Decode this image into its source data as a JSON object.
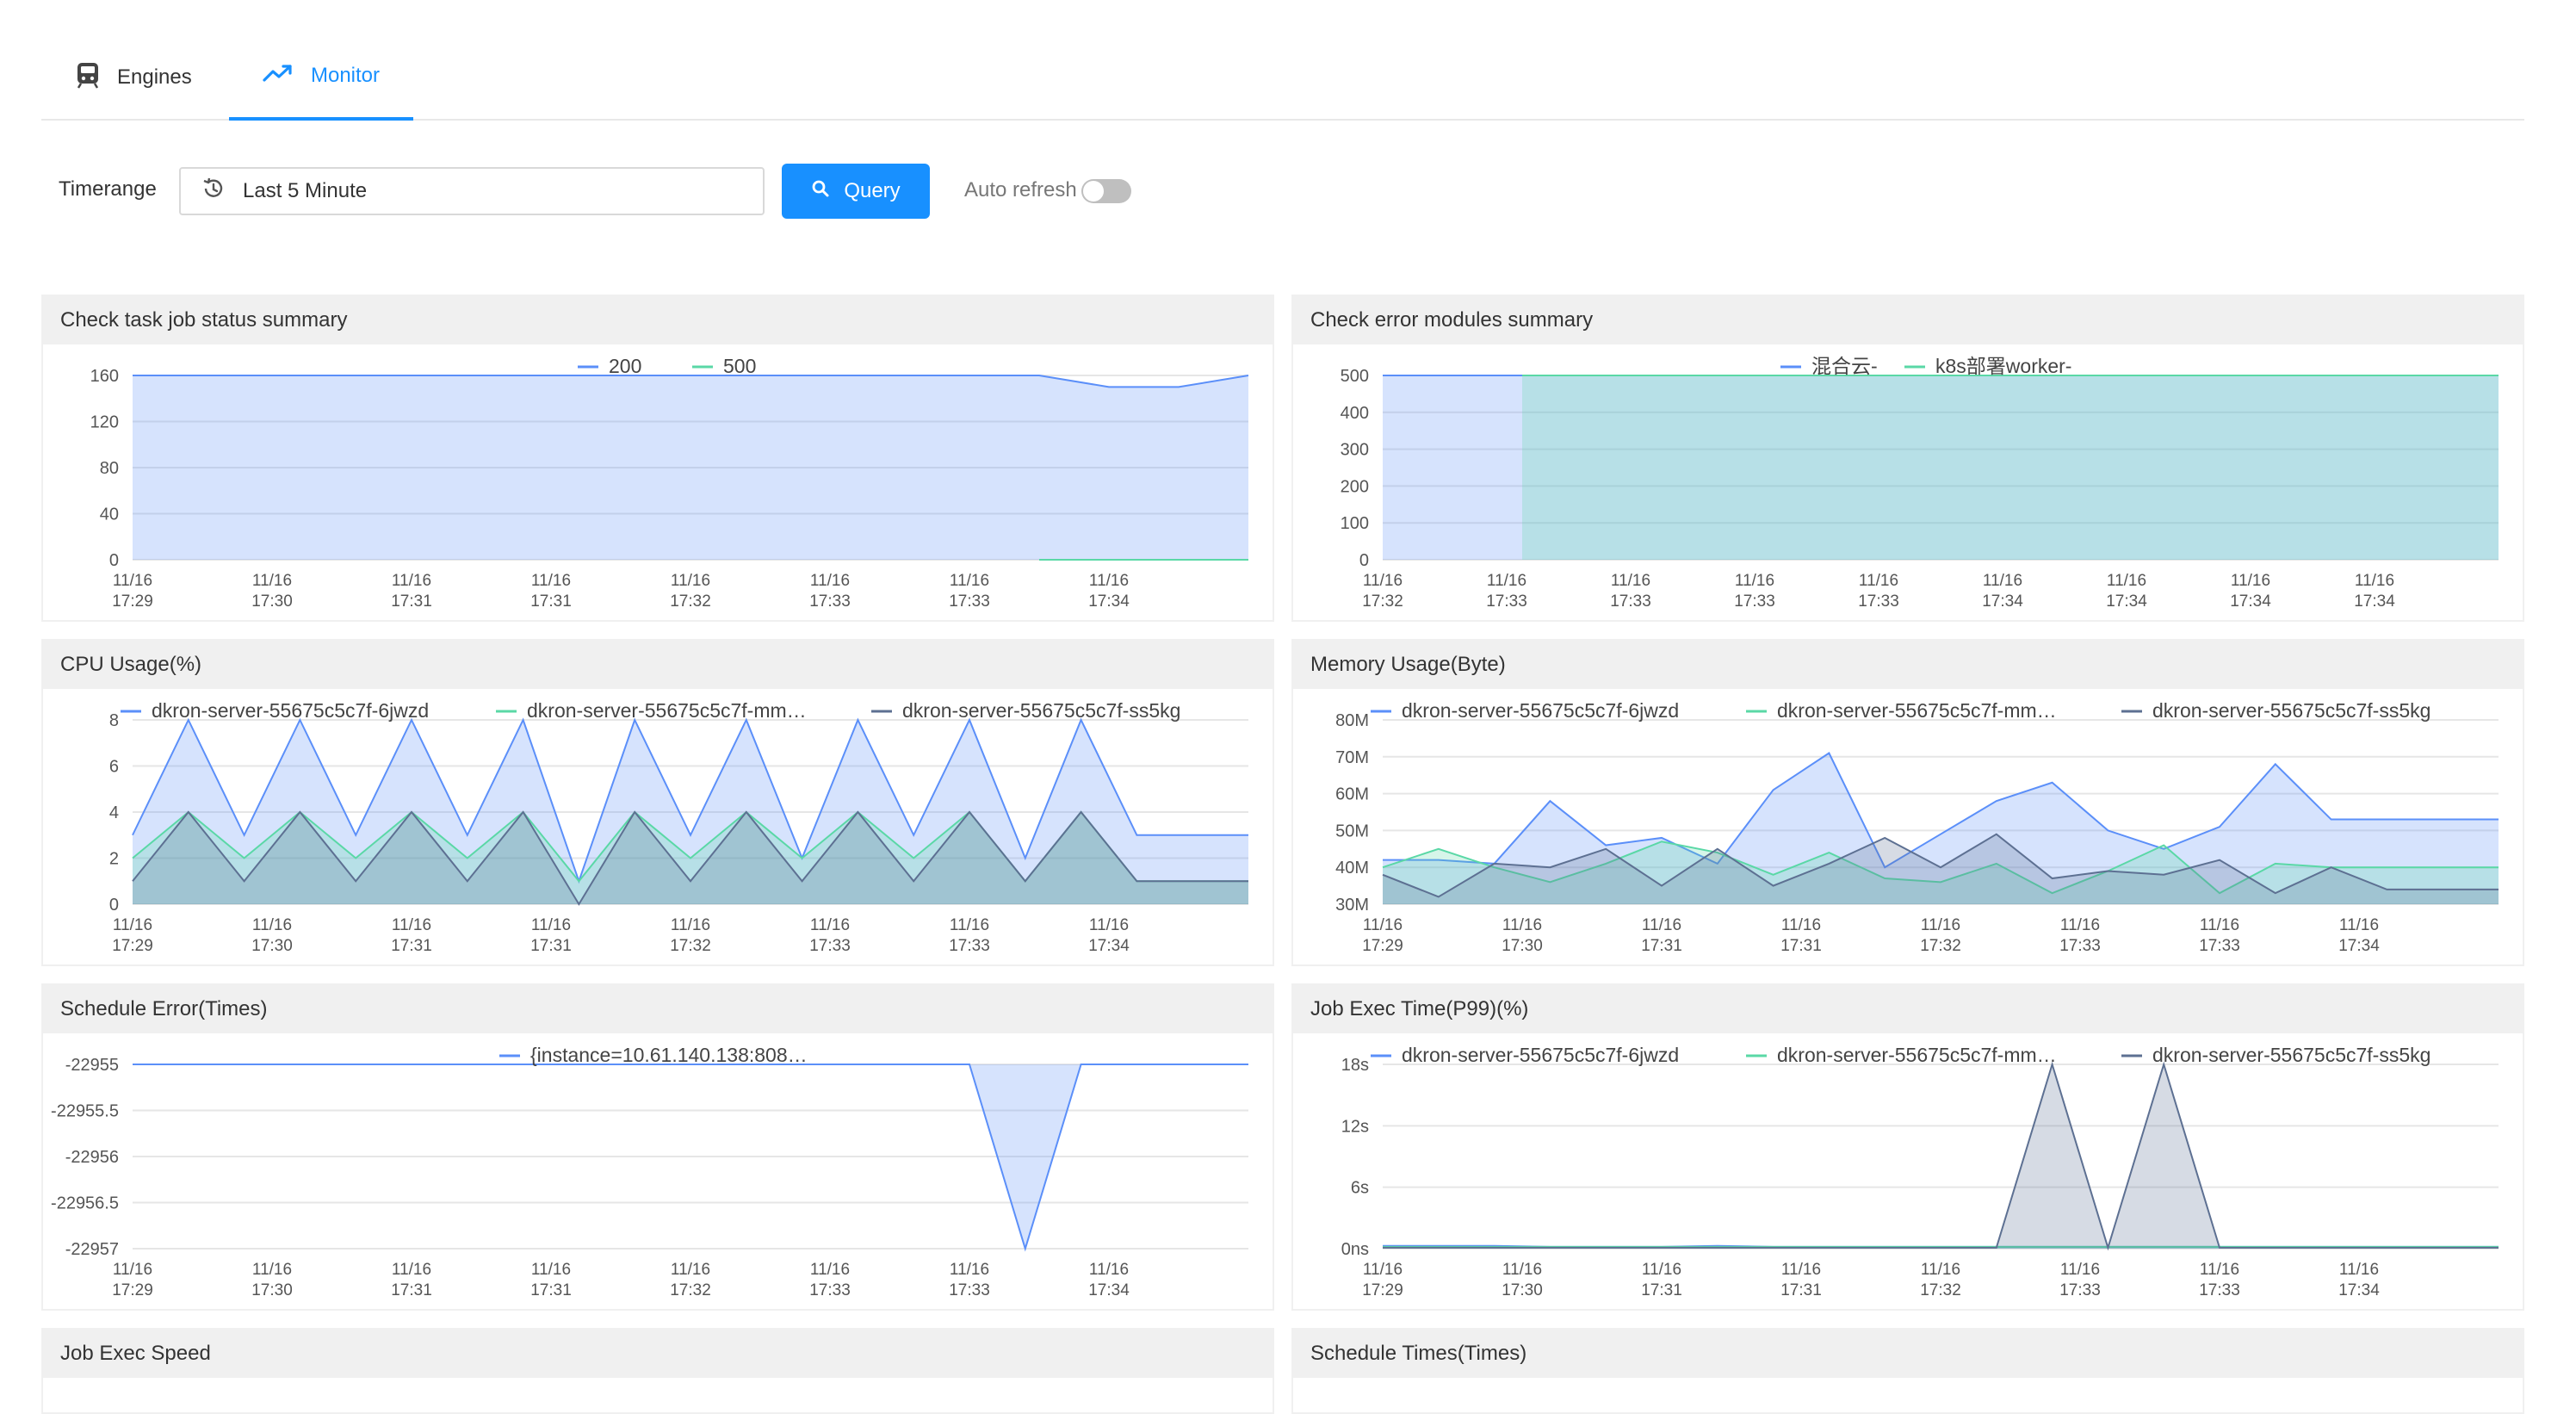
{
  "tabs": [
    {
      "label": "Engines",
      "icon": "train-icon",
      "active": false
    },
    {
      "label": "Monitor",
      "icon": "trend-line-icon",
      "active": true
    }
  ],
  "toolbar": {
    "timerange_label": "Timerange",
    "timerange_value": "Last 5 Minute",
    "query_label": "Query",
    "auto_refresh_label": "Auto refresh",
    "auto_refresh_on": false
  },
  "colors": {
    "accent": "#1890ff",
    "series1": "#5b8ff9",
    "series2": "#5ad8a6",
    "series3": "#5d7092"
  },
  "panels": [
    {
      "title": "Check task job status summary"
    },
    {
      "title": "Check error modules summary"
    },
    {
      "title": "CPU Usage(%)"
    },
    {
      "title": "Memory Usage(Byte)"
    },
    {
      "title": "Schedule Error(Times)"
    },
    {
      "title": "Job Exec Time(P99)(%)"
    },
    {
      "title": "Job Exec Speed"
    },
    {
      "title": "Schedule Times(Times)"
    }
  ],
  "chart_data": [
    {
      "type": "area",
      "title": "Check task job status summary",
      "xticks": [
        "11/16\n17:29",
        "11/16\n17:30",
        "11/16\n17:31",
        "11/16\n17:31",
        "11/16\n17:32",
        "11/16\n17:33",
        "11/16\n17:33",
        "11/16\n17:34"
      ],
      "yticks": [
        "0",
        "40",
        "80",
        "120",
        "160"
      ],
      "ylim": [
        0,
        160
      ],
      "npoints": 17,
      "series": [
        {
          "name": "200",
          "color": "#5b8ff9",
          "values": [
            160,
            160,
            160,
            160,
            160,
            160,
            160,
            160,
            160,
            160,
            160,
            160,
            160,
            160,
            150,
            150,
            160
          ]
        },
        {
          "name": "500",
          "color": "#5ad8a6",
          "values": [
            null,
            null,
            null,
            null,
            null,
            null,
            null,
            null,
            null,
            null,
            null,
            null,
            null,
            0,
            0,
            0,
            0
          ]
        }
      ],
      "legend": "top"
    },
    {
      "type": "area",
      "title": "Check error modules summary",
      "xticks": [
        "11/16\n17:32",
        "11/16\n17:33",
        "11/16\n17:33",
        "11/16\n17:33",
        "11/16\n17:33",
        "11/16\n17:34",
        "11/16\n17:34",
        "11/16\n17:34",
        "11/16\n17:34"
      ],
      "yticks": [
        "0",
        "100",
        "200",
        "300",
        "400",
        "500"
      ],
      "ylim": [
        0,
        500
      ],
      "npoints": 9,
      "series": [
        {
          "name": "混合云-",
          "color": "#5b8ff9",
          "values": [
            500,
            500,
            500,
            500,
            500,
            500,
            500,
            500,
            500
          ]
        },
        {
          "name": "k8s部署worker-",
          "color": "#5ad8a6",
          "values": [
            null,
            500,
            500,
            500,
            500,
            500,
            500,
            500,
            500
          ]
        }
      ],
      "legend": "top"
    },
    {
      "type": "area",
      "title": "CPU Usage(%)",
      "xticks": [
        "11/16\n17:29",
        "11/16\n17:30",
        "11/16\n17:31",
        "11/16\n17:31",
        "11/16\n17:32",
        "11/16\n17:33",
        "11/16\n17:33",
        "11/16\n17:34"
      ],
      "yticks": [
        "0",
        "2",
        "4",
        "6",
        "8"
      ],
      "ylim": [
        0,
        8
      ],
      "npoints": 21,
      "series": [
        {
          "name": "dkron-server-55675c5c7f-6jwzd",
          "color": "#5b8ff9",
          "values": [
            3,
            8,
            3,
            8,
            3,
            8,
            3,
            8,
            1,
            8,
            3,
            8,
            2,
            8,
            3,
            8,
            2,
            8,
            3,
            3,
            3
          ]
        },
        {
          "name": "dkron-server-55675c5c7f-mm…",
          "color": "#5ad8a6",
          "values": [
            2,
            4,
            2,
            4,
            2,
            4,
            2,
            4,
            1,
            4,
            2,
            4,
            2,
            4,
            2,
            4,
            1,
            4,
            1,
            1,
            1
          ]
        },
        {
          "name": "dkron-server-55675c5c7f-ss5kg",
          "color": "#5d7092",
          "values": [
            1,
            4,
            1,
            4,
            1,
            4,
            1,
            4,
            0,
            4,
            1,
            4,
            1,
            4,
            1,
            4,
            1,
            4,
            1,
            1,
            1
          ]
        }
      ],
      "legend": "top"
    },
    {
      "type": "area",
      "title": "Memory Usage(Byte)",
      "xticks": [
        "11/16\n17:29",
        "11/16\n17:30",
        "11/16\n17:31",
        "11/16\n17:31",
        "11/16\n17:32",
        "11/16\n17:33",
        "11/16\n17:33",
        "11/16\n17:34"
      ],
      "yticks": [
        "30M",
        "40M",
        "50M",
        "60M",
        "70M",
        "80M"
      ],
      "ylim": [
        30,
        80
      ],
      "npoints": 21,
      "series": [
        {
          "name": "dkron-server-55675c5c7f-6jwzd",
          "color": "#5b8ff9",
          "values": [
            42,
            42,
            41,
            58,
            46,
            48,
            41,
            61,
            71,
            40,
            49,
            58,
            63,
            50,
            45,
            51,
            68,
            53,
            53,
            53,
            53
          ]
        },
        {
          "name": "dkron-server-55675c5c7f-mm…",
          "color": "#5ad8a6",
          "values": [
            40,
            45,
            40,
            36,
            41,
            47,
            44,
            38,
            44,
            37,
            36,
            41,
            33,
            39,
            46,
            33,
            41,
            40,
            40,
            40,
            40
          ]
        },
        {
          "name": "dkron-server-55675c5c7f-ss5kg",
          "color": "#5d7092",
          "values": [
            38,
            32,
            41,
            40,
            45,
            35,
            45,
            35,
            41,
            48,
            40,
            49,
            37,
            39,
            38,
            42,
            33,
            40,
            34,
            34,
            34
          ]
        }
      ],
      "legend": "top"
    },
    {
      "type": "area",
      "title": "Schedule Error(Times)",
      "xticks": [
        "11/16\n17:29",
        "11/16\n17:30",
        "11/16\n17:31",
        "11/16\n17:31",
        "11/16\n17:32",
        "11/16\n17:33",
        "11/16\n17:33",
        "11/16\n17:34"
      ],
      "yticks": [
        "-22957",
        "-22956.5",
        "-22956",
        "-22955.5",
        "-22955"
      ],
      "ylim": [
        -22957,
        -22955
      ],
      "npoints": 21,
      "series": [
        {
          "name": "{instance=10.61.140.138:808…",
          "color": "#5b8ff9",
          "values": [
            -22955,
            -22955,
            -22955,
            -22955,
            -22955,
            -22955,
            -22955,
            -22955,
            -22955,
            -22955,
            -22955,
            -22955,
            -22955,
            -22955,
            -22955,
            -22955,
            -22957,
            -22955,
            -22955,
            -22955,
            -22955
          ]
        }
      ],
      "baseline": "top",
      "legend": "top"
    },
    {
      "type": "area",
      "title": "Job Exec Time(P99)(%)",
      "xticks": [
        "11/16\n17:29",
        "11/16\n17:30",
        "11/16\n17:31",
        "11/16\n17:31",
        "11/16\n17:32",
        "11/16\n17:33",
        "11/16\n17:33",
        "11/16\n17:34"
      ],
      "yticks": [
        "0ns",
        "6s",
        "12s",
        "18s"
      ],
      "ylim": [
        0,
        20
      ],
      "npoints": 21,
      "series": [
        {
          "name": "dkron-server-55675c5c7f-6jwzd",
          "color": "#5b8ff9",
          "values": [
            0.3,
            0.3,
            0.3,
            0.2,
            0.2,
            0.2,
            0.3,
            0.2,
            0.2,
            0.2,
            0.2,
            0.2,
            0.2,
            0.2,
            0.2,
            0.2,
            0.2,
            0.2,
            0.2,
            0.2,
            0.2
          ]
        },
        {
          "name": "dkron-server-55675c5c7f-mm…",
          "color": "#5ad8a6",
          "values": [
            0.2,
            0.2,
            0.2,
            0.2,
            0.2,
            0.2,
            0.2,
            0.2,
            0.2,
            0.2,
            0.2,
            0.2,
            0.2,
            0.2,
            0.2,
            0.2,
            0.2,
            0.2,
            0.2,
            0.2,
            0.2
          ]
        },
        {
          "name": "dkron-server-55675c5c7f-ss5kg",
          "color": "#5d7092",
          "values": [
            0.1,
            0.1,
            0.1,
            0.1,
            0.1,
            0.1,
            0.1,
            0.1,
            0.1,
            0.1,
            0.1,
            0.1,
            20,
            0.1,
            20,
            0.1,
            0.1,
            0.1,
            0.1,
            0.1,
            0.1
          ]
        }
      ],
      "legend": "top"
    }
  ]
}
